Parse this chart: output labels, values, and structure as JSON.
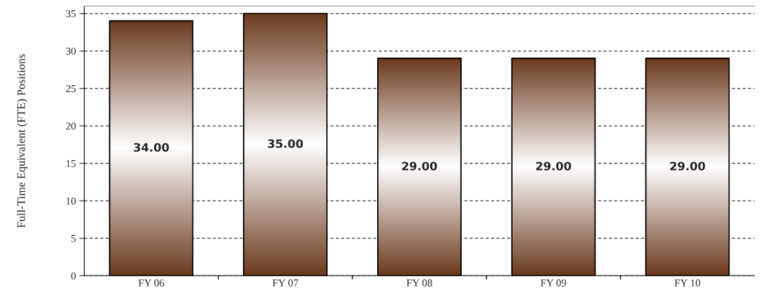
{
  "chart_data": {
    "type": "bar",
    "ylabel": "Full-Time Equivalent (FTE) Positions",
    "categories": [
      "FY 06",
      "FY 07",
      "FY 08",
      "FY 09",
      "FY 10"
    ],
    "values": [
      34,
      35,
      29,
      29,
      29
    ],
    "value_labels": [
      "34.00",
      "35.00",
      "29.00",
      "29.00",
      "29.00"
    ],
    "color": "#6b3a1f",
    "ylim": [
      0,
      36
    ],
    "yticks": [
      0,
      5,
      10,
      15,
      20,
      25,
      30,
      35
    ],
    "grid": "y"
  }
}
